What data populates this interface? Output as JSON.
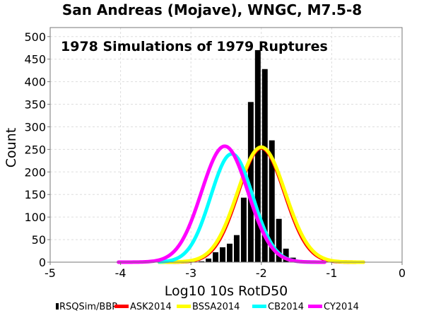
{
  "chart_data": {
    "type": "bar",
    "title": "San Andreas (Mojave), WNGC, M7.5-8",
    "annotation": "1978 Simulations of 1979 Ruptures",
    "xlabel": "Log10 10s RotD50",
    "ylabel": "Count",
    "xlim": [
      -5,
      0
    ],
    "ylim": [
      0,
      520
    ],
    "xticks": [
      -5,
      -4,
      -3,
      -2,
      -1,
      0
    ],
    "xtick_labels": [
      "-5",
      "-4",
      "-3",
      "-2",
      "-1",
      "0"
    ],
    "yticks": [
      0,
      50,
      100,
      150,
      200,
      250,
      300,
      350,
      400,
      450,
      500
    ],
    "ytick_labels": [
      "0",
      "50",
      "100",
      "150",
      "200",
      "250",
      "300",
      "350",
      "400",
      "450",
      "500"
    ],
    "grid": true,
    "legend_position": "bottom",
    "histogram": {
      "name": "RSQSim/BBP",
      "color": "#000000",
      "bin_width": 0.1,
      "bin_centers": [
        -2.85,
        -2.75,
        -2.65,
        -2.55,
        -2.45,
        -2.35,
        -2.25,
        -2.15,
        -2.05,
        -1.95,
        -1.85,
        -1.75,
        -1.65,
        -1.55
      ],
      "values": [
        2,
        8,
        22,
        33,
        41,
        60,
        143,
        355,
        470,
        428,
        270,
        96,
        30,
        10
      ]
    },
    "curves": [
      {
        "name": "ASK2014",
        "color": "#ff0000",
        "mu": -2.0,
        "sigma": 0.33,
        "peak": 253,
        "x_range": [
          -3.45,
          -0.55
        ]
      },
      {
        "name": "BSSA2014",
        "color": "#ffff00",
        "mu": -2.0,
        "sigma": 0.34,
        "peak": 255,
        "x_range": [
          -3.45,
          -0.55
        ]
      },
      {
        "name": "CB2014",
        "color": "#00ffff",
        "mu": -2.42,
        "sigma": 0.3,
        "peak": 240,
        "x_range": [
          -3.45,
          -1.12
        ]
      },
      {
        "name": "CY2014",
        "color": "#ff00ff",
        "mu": -2.52,
        "sigma": 0.33,
        "peak": 257,
        "x_range": [
          -4.03,
          -1.1
        ]
      }
    ],
    "legend": [
      {
        "label": "RSQSim/BBP",
        "color": "#000000"
      },
      {
        "label": "ASK2014",
        "color": "#ff0000"
      },
      {
        "label": "BSSA2014",
        "color": "#ffff00"
      },
      {
        "label": "CB2014",
        "color": "#00ffff"
      },
      {
        "label": "CY2014",
        "color": "#ff00ff"
      }
    ]
  }
}
